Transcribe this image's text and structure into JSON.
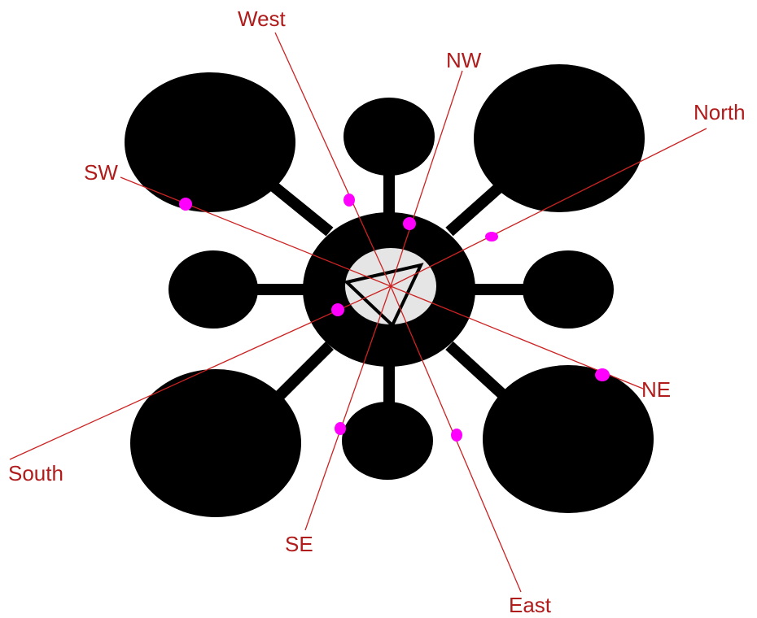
{
  "colors": {
    "shape_fill": "#000000",
    "center_fill": "#e5e5e5",
    "ray_color": "#cc2222",
    "label_color": "#b01c1c",
    "marker_color": "#ff00ff"
  },
  "labels": {
    "north": "North",
    "nw": "NW",
    "west": "West",
    "sw": "SW",
    "south": "South",
    "se": "SE",
    "east": "East",
    "ne": "NE"
  }
}
